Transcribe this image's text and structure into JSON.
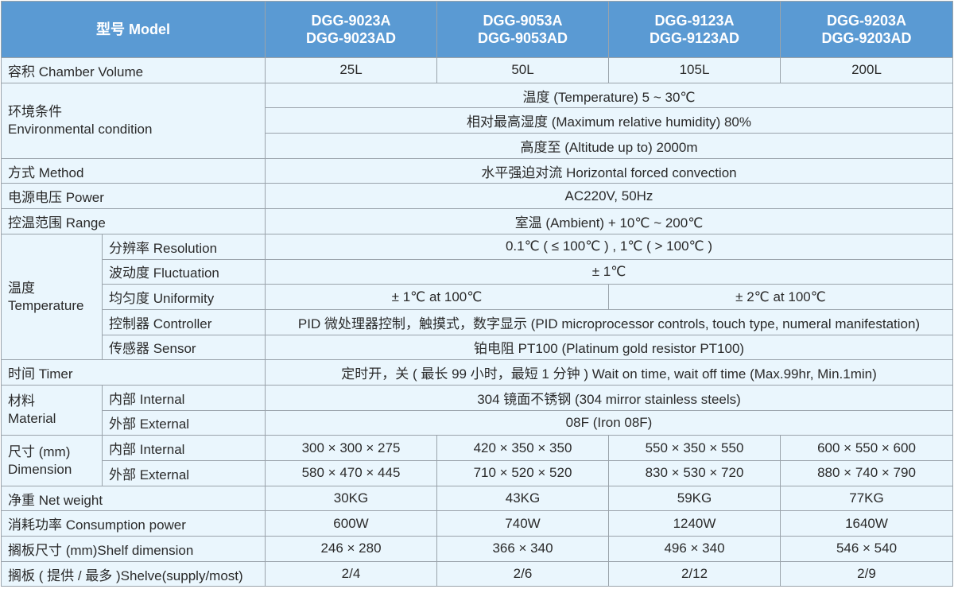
{
  "header": {
    "label": "型号 Model",
    "models": [
      "DGG-9023A\nDGG-9023AD",
      "DGG-9053A\nDGG-9053AD",
      "DGG-9123A\nDGG-9123AD",
      "DGG-9203A\nDGG-9203AD"
    ]
  },
  "volume": {
    "label": "容积 Chamber Volume",
    "values": [
      "25L",
      "50L",
      "105L",
      "200L"
    ]
  },
  "env": {
    "label": "环境条件\nEnvironmental condition",
    "values": [
      "温度 (Temperature) 5 ~ 30℃",
      "相对最高湿度 (Maximum relative humidity) 80%",
      "高度至 (Altitude up to) 2000m"
    ]
  },
  "method": {
    "label": "方式 Method",
    "value": "水平强迫对流 Horizontal forced convection"
  },
  "power": {
    "label": "电源电压 Power",
    "value": "AC220V, 50Hz"
  },
  "range": {
    "label": "控温范围 Range",
    "value": "室温 (Ambient) + 10℃ ~ 200℃"
  },
  "temperature": {
    "label": "温度\nTemperature",
    "resolution": {
      "label": "分辨率 Resolution",
      "value": "0.1℃ ( ≤ 100℃ ) , 1℃ ( > 100℃ )"
    },
    "fluctuation": {
      "label": "波动度 Fluctuation",
      "value": "± 1℃"
    },
    "uniformity": {
      "label": "均匀度 Uniformity",
      "values": [
        "± 1℃ at 100℃",
        "± 2℃ at 100℃"
      ]
    },
    "controller": {
      "label": "控制器 Controller",
      "value": "PID 微处理器控制，触摸式，数字显示 (PID microprocessor controls, touch type, numeral manifestation)"
    },
    "sensor": {
      "label": "传感器 Sensor",
      "value": "铂电阻 PT100  (Platinum gold resistor PT100)"
    }
  },
  "timer": {
    "label": "时间 Timer",
    "value": "定时开，关 ( 最长 99 小时，最短 1 分钟 )  Wait on time, wait off time (Max.99hr, Min.1min)"
  },
  "material": {
    "label": "材料\nMaterial",
    "internal": {
      "label": "内部 Internal",
      "value": "304 镜面不锈钢 (304 mirror stainless steels)"
    },
    "external": {
      "label": "外部 External",
      "value": "08F (Iron 08F)"
    }
  },
  "dimension": {
    "label": "尺寸 (mm)\nDimension",
    "internal": {
      "label": "内部 Internal",
      "values": [
        "300 × 300 × 275",
        "420 × 350 × 350",
        "550 × 350 × 550",
        "600 × 550 × 600"
      ]
    },
    "external": {
      "label": "外部 External",
      "values": [
        "580 × 470 × 445",
        "710 × 520 × 520",
        "830 × 530 × 720",
        "880 × 740 × 790"
      ]
    }
  },
  "weight": {
    "label": "净重 Net weight",
    "values": [
      "30KG",
      "43KG",
      "59KG",
      "77KG"
    ]
  },
  "consumption": {
    "label": "消耗功率 Consumption power",
    "values": [
      "600W",
      "740W",
      "1240W",
      "1640W"
    ]
  },
  "shelf_dim": {
    "label": "搁板尺寸 (mm)Shelf dimension",
    "values": [
      "246 × 280",
      "366 × 340",
      "496 × 340",
      "546 × 540"
    ]
  },
  "shelves": {
    "label": "搁板 ( 提供 / 最多 )Shelve(supply/most)",
    "values": [
      "2/4",
      "2/6",
      "2/12",
      "2/9"
    ]
  }
}
